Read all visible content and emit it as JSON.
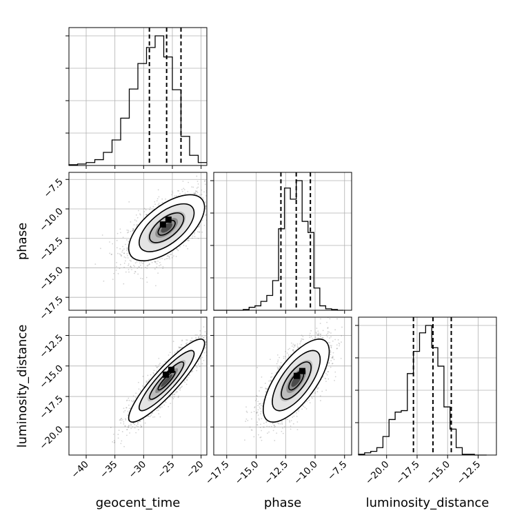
{
  "chart_data": {
    "type": "corner",
    "parameters": [
      "geocent_time",
      "phase",
      "luminosity_distance"
    ],
    "axis_labels": {
      "geocent_time": "geocent_time",
      "phase": "phase",
      "luminosity_distance": "luminosity_distance"
    },
    "ranges": {
      "geocent_time": [
        -43,
        -19
      ],
      "phase": [
        -18.6,
        -6.9
      ],
      "luminosity_distance": [
        -22.3,
        -11.0
      ]
    },
    "ticks": {
      "geocent_time": [
        -40,
        -35,
        -30,
        -25,
        -20
      ],
      "phase": [
        -17.5,
        -15.0,
        -12.5,
        -10.0,
        -7.5
      ],
      "luminosity_distance": [
        -20.0,
        -17.5,
        -15.0,
        -12.5
      ]
    },
    "tick_labels": {
      "geocent_time": [
        "−40",
        "−35",
        "−30",
        "−25",
        "−20"
      ],
      "phase": [
        "−17.5",
        "−15.0",
        "−12.5",
        "−10.0",
        "−7.5"
      ],
      "luminosity_distance": [
        "−20.0",
        "−17.5",
        "−15.0",
        "−12.5"
      ]
    },
    "quantiles": {
      "geocent_time": [
        -29.0,
        -26.0,
        -23.5
      ],
      "phase": [
        -12.9,
        -11.6,
        -10.4
      ],
      "luminosity_distance": [
        -17.8,
        -16.2,
        -14.7
      ]
    },
    "histograms": {
      "geocent_time": {
        "edges": [
          -43,
          -41.5,
          -40,
          -38.5,
          -37,
          -35.5,
          -34,
          -32.5,
          -31,
          -29.5,
          -28,
          -26.5,
          -25,
          -23.5,
          -22,
          -20.5,
          -19
        ],
        "counts": [
          1,
          2,
          4,
          8,
          18,
          35,
          65,
          105,
          140,
          162,
          178,
          149,
          104,
          40,
          14,
          4
        ]
      },
      "phase": {
        "edges": [
          -18.6,
          -18.1,
          -17.6,
          -17.1,
          -16.6,
          -16.1,
          -15.6,
          -15.1,
          -14.6,
          -14.1,
          -13.6,
          -13.1,
          -12.6,
          -12.1,
          -11.6,
          -11.1,
          -10.6,
          -10.1,
          -9.6,
          -9.1,
          -8.6,
          -8.1,
          -7.6
        ],
        "counts": [
          0,
          0,
          0,
          0,
          0,
          1,
          4,
          6,
          12,
          20,
          40,
          110,
          165,
          150,
          175,
          120,
          105,
          30,
          6,
          2,
          1,
          0
        ]
      },
      "luminosity_distance": {
        "edges": [
          -22.3,
          -21.8,
          -21.3,
          -20.8,
          -20.3,
          -19.8,
          -19.3,
          -18.8,
          -18.3,
          -17.8,
          -17.3,
          -16.8,
          -16.3,
          -15.8,
          -15.3,
          -14.8,
          -14.3,
          -13.8,
          -13.3,
          -12.8,
          -12.3,
          -11.8
        ],
        "counts": [
          1,
          3,
          5,
          10,
          25,
          48,
          58,
          60,
          110,
          140,
          165,
          175,
          145,
          120,
          65,
          35,
          10,
          1,
          1,
          0,
          0
        ]
      }
    },
    "pairs": [
      {
        "x": "geocent_time",
        "y": "phase",
        "mean": [
          -26.0,
          -11.6
        ],
        "sd": [
          3.3,
          1.4
        ],
        "corr": 0.62,
        "peak": [
          -25.5,
          -11.0
        ]
      },
      {
        "x": "geocent_time",
        "y": "luminosity_distance",
        "mean": [
          -26.0,
          -16.2
        ],
        "sd": [
          3.3,
          1.7
        ],
        "corr": 0.9,
        "peak": [
          -25.0,
          -15.4
        ]
      },
      {
        "x": "phase",
        "y": "luminosity_distance",
        "mean": [
          -11.6,
          -16.2
        ],
        "sd": [
          1.4,
          1.7
        ],
        "corr": 0.7,
        "peak": [
          -11.0,
          -15.5
        ]
      }
    ],
    "grid": true
  }
}
